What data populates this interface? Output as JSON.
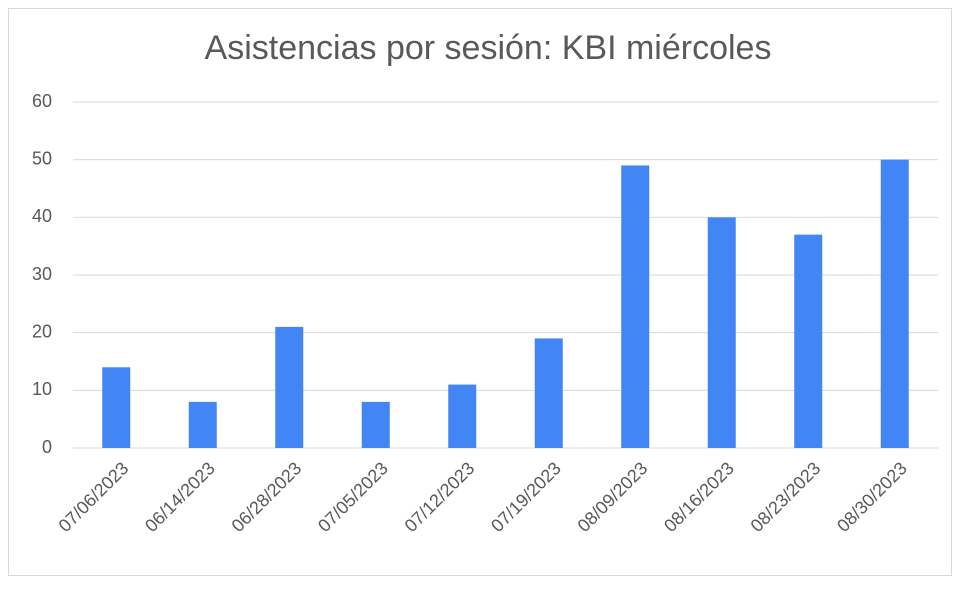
{
  "chart_data": {
    "type": "bar",
    "title": "Asistencias por sesión: KBI miércoles",
    "categories": [
      "07/06/2023",
      "06/14/2023",
      "06/28/2023",
      "07/05/2023",
      "07/12/2023",
      "07/19/2023",
      "08/09/2023",
      "08/16/2023",
      "08/23/2023",
      "08/30/2023"
    ],
    "values": [
      14,
      8,
      21,
      8,
      11,
      19,
      49,
      40,
      37,
      50
    ],
    "color": "#4285f4",
    "ylim": [
      0,
      60
    ],
    "yticks": [
      0,
      10,
      20,
      30,
      40,
      50,
      60
    ],
    "grid": true
  }
}
